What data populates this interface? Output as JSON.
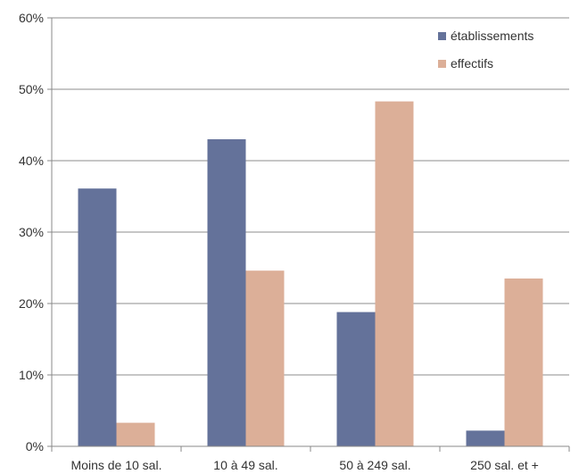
{
  "chart_data": {
    "type": "bar",
    "categories": [
      "Moins de 10 sal.",
      "10 à 49 sal.",
      "50 à 249 sal.",
      "250 sal. et +"
    ],
    "series": [
      {
        "name": "établissements",
        "values": [
          36.1,
          43.0,
          18.8,
          2.2
        ],
        "color": "#64729a"
      },
      {
        "name": "effectifs",
        "values": [
          3.3,
          24.6,
          48.3,
          23.5
        ],
        "color": "#dcaf98"
      }
    ],
    "y_ticks": [
      "0%",
      "10%",
      "20%",
      "30%",
      "40%",
      "50%",
      "60%"
    ],
    "ylim": [
      0,
      60
    ],
    "unit": "%",
    "grid": true,
    "legend_position": "top-right",
    "title": "",
    "xlabel": "",
    "ylabel": ""
  }
}
